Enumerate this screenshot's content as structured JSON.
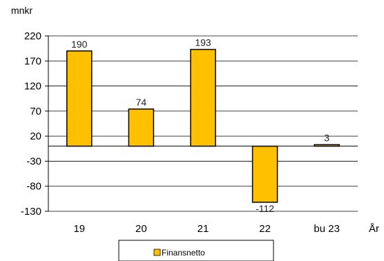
{
  "chart_data": {
    "type": "bar",
    "ylabel": "mnkr",
    "xlabel": "År",
    "categories": [
      "19",
      "20",
      "21",
      "22",
      "bu 23"
    ],
    "series": [
      {
        "name": "Finansnetto",
        "values": [
          190,
          74,
          193,
          -112,
          3
        ],
        "color": "#FFC000"
      }
    ],
    "data_labels": [
      "190",
      "74",
      "193",
      "-112",
      "3"
    ],
    "ylim": [
      -130,
      220
    ],
    "yticks": [
      220,
      170,
      120,
      70,
      20,
      -30,
      -80,
      -130
    ],
    "grid": true,
    "legend_position": "bottom"
  }
}
